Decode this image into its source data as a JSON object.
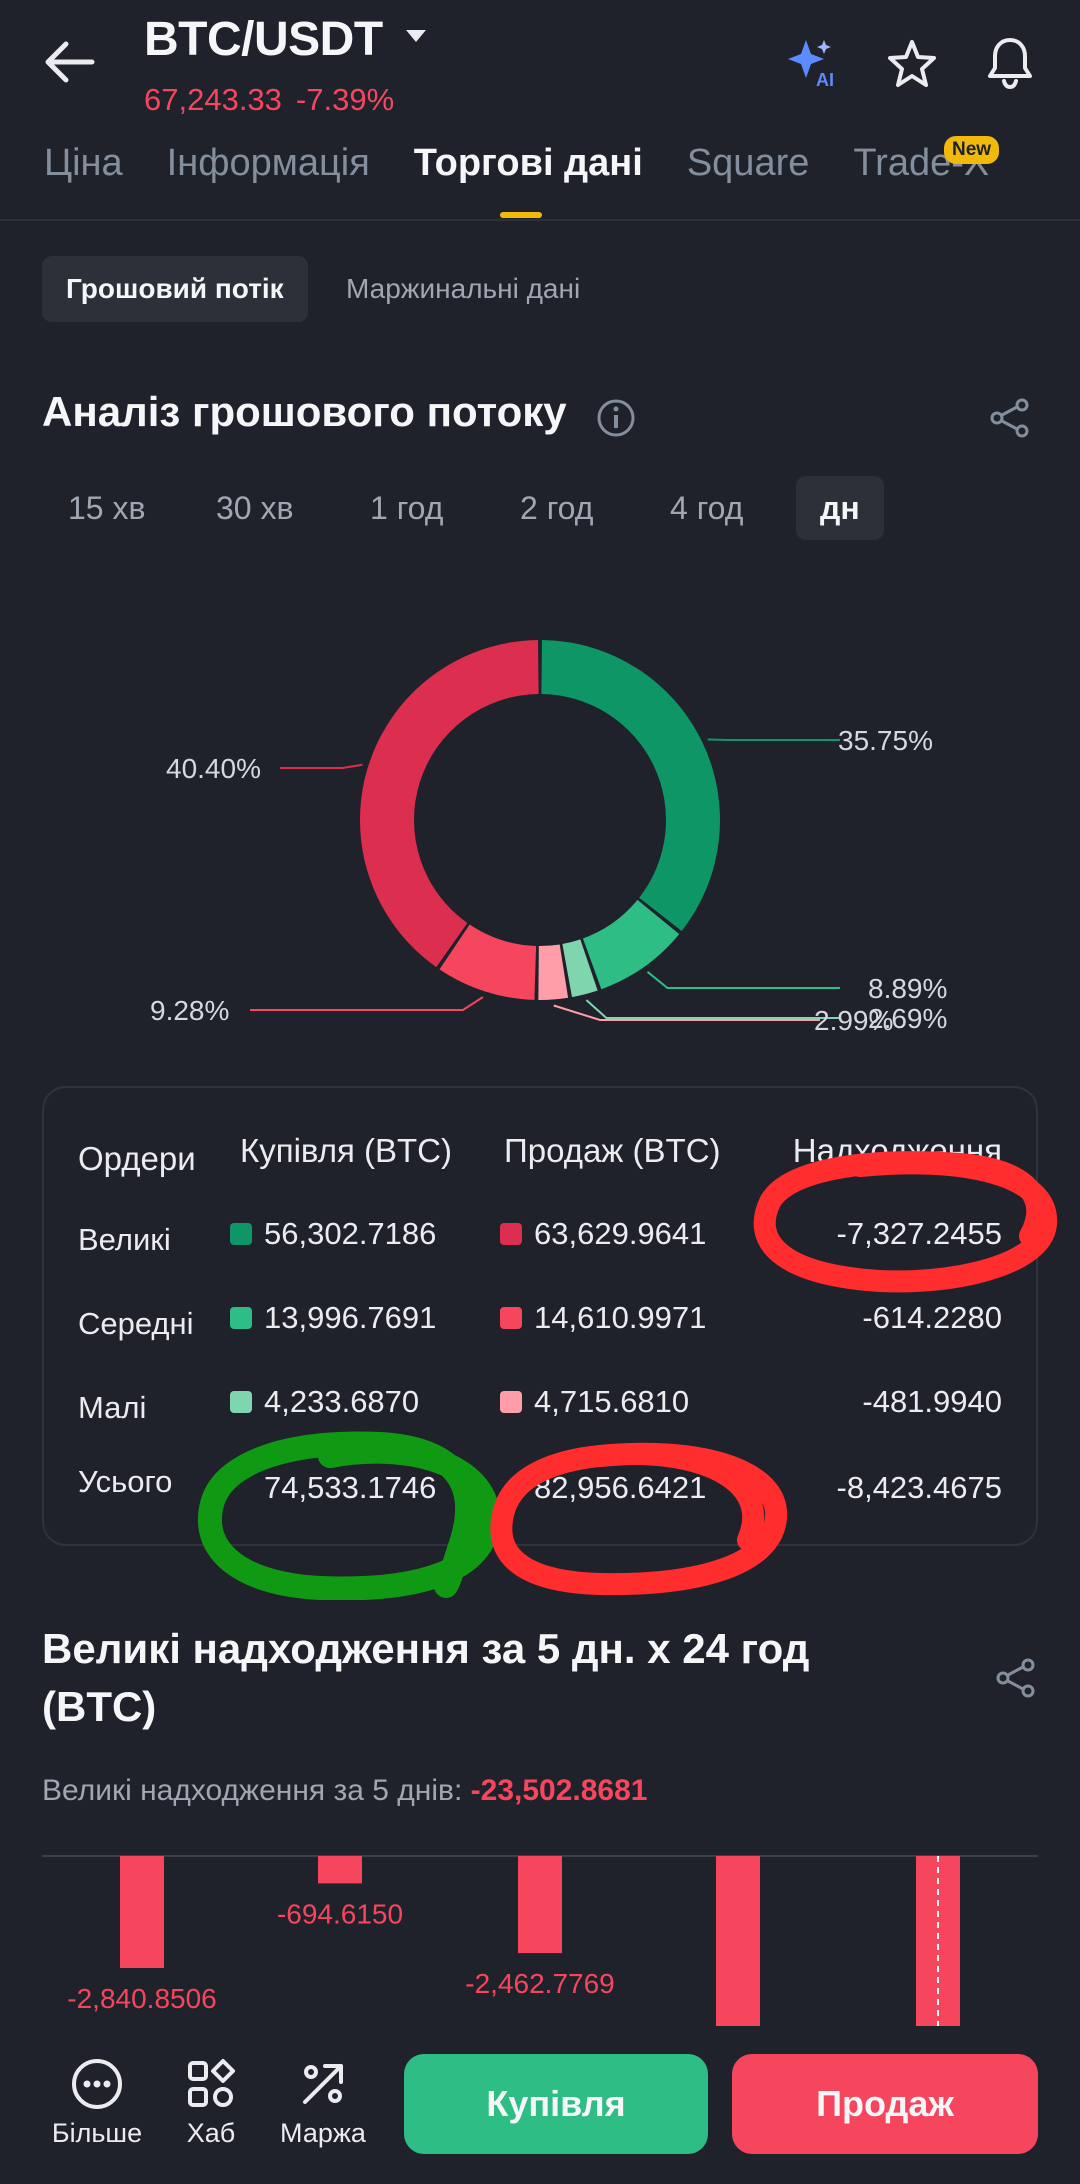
{
  "header": {
    "pair": "BTC/USDT",
    "price": "67,243.33",
    "change": "-7.39%",
    "icons": [
      "back-arrow-icon",
      "caret-down-icon",
      "ai-sparkle-icon",
      "star-icon",
      "bell-icon"
    ],
    "ai_label": "AI"
  },
  "tabs": [
    {
      "label": "Ціна"
    },
    {
      "label": "Інформація"
    },
    {
      "label": "Торгові дані"
    },
    {
      "label": "Square"
    },
    {
      "label": "Trade-X"
    }
  ],
  "tabs_new_badge": "New",
  "subtabs": [
    {
      "label": "Грошовий потік"
    },
    {
      "label": "Маржинальні дані"
    }
  ],
  "flow": {
    "title": "Аналіз грошового потоку",
    "timeframes": [
      "15 хв",
      "30 хв",
      "1 год",
      "2 год",
      "4 год",
      "дн"
    ],
    "active_timeframe": "дн"
  },
  "chart_data": {
    "type": "pie",
    "slices": [
      {
        "label": "35.75%",
        "value": 35.75,
        "color": "#0e9666"
      },
      {
        "label": "8.89%",
        "value": 8.89,
        "color": "#2ebd85"
      },
      {
        "label": "2.69%",
        "value": 2.69,
        "color": "#7fd6ae"
      },
      {
        "label": "2.99%",
        "value": 2.99,
        "color": "#ff9ea8"
      },
      {
        "label": "9.28%",
        "value": 9.28,
        "color": "#f6465d"
      },
      {
        "label": "40.40%",
        "value": 40.4,
        "color": "#dc2e4e"
      }
    ]
  },
  "table": {
    "headers": [
      "Ордери",
      "Купівля (BTC)",
      "Продаж (BTC)",
      "Надходження"
    ],
    "rows": [
      {
        "label": "Великі",
        "buy": "56,302.7186",
        "sell": "63,629.9641",
        "net": "-7,327.2455",
        "buy_color": "#0e9666",
        "sell_color": "#dc2e4e"
      },
      {
        "label": "Середні",
        "buy": "13,996.7691",
        "sell": "14,610.9971",
        "net": "-614.2280",
        "buy_color": "#2ebd85",
        "sell_color": "#f6465d"
      },
      {
        "label": "Малі",
        "buy": "4,233.6870",
        "sell": "4,715.6810",
        "net": "-481.9940",
        "buy_color": "#7fd6ae",
        "sell_color": "#ff9ea8"
      }
    ],
    "total": {
      "label": "Усього",
      "buy": "74,533.1746",
      "sell": "82,956.6421",
      "net": "-8,423.4675"
    }
  },
  "large_inflow": {
    "title": "Великі надходження за 5 дн. х 24 год (BTC)",
    "summary_label": "Великі надходження за 5 днів:",
    "summary_value": "-23,502.8681",
    "bars": [
      {
        "value": -2840.8506,
        "label": "-2,840.8506"
      },
      {
        "value": -694.615,
        "label": "-694.6150"
      },
      {
        "value": -2462.7769,
        "label": "-2,462.7769"
      },
      {
        "value": null,
        "label": ""
      },
      {
        "value": null,
        "label": ""
      }
    ]
  },
  "bottom": {
    "nav": [
      {
        "label": "Більше",
        "icon": "more-dots-icon"
      },
      {
        "label": "Хаб",
        "icon": "hub-grid-icon"
      },
      {
        "label": "Маржа",
        "icon": "margin-icon"
      }
    ],
    "buy_label": "Купівля",
    "sell_label": "Продаж"
  }
}
